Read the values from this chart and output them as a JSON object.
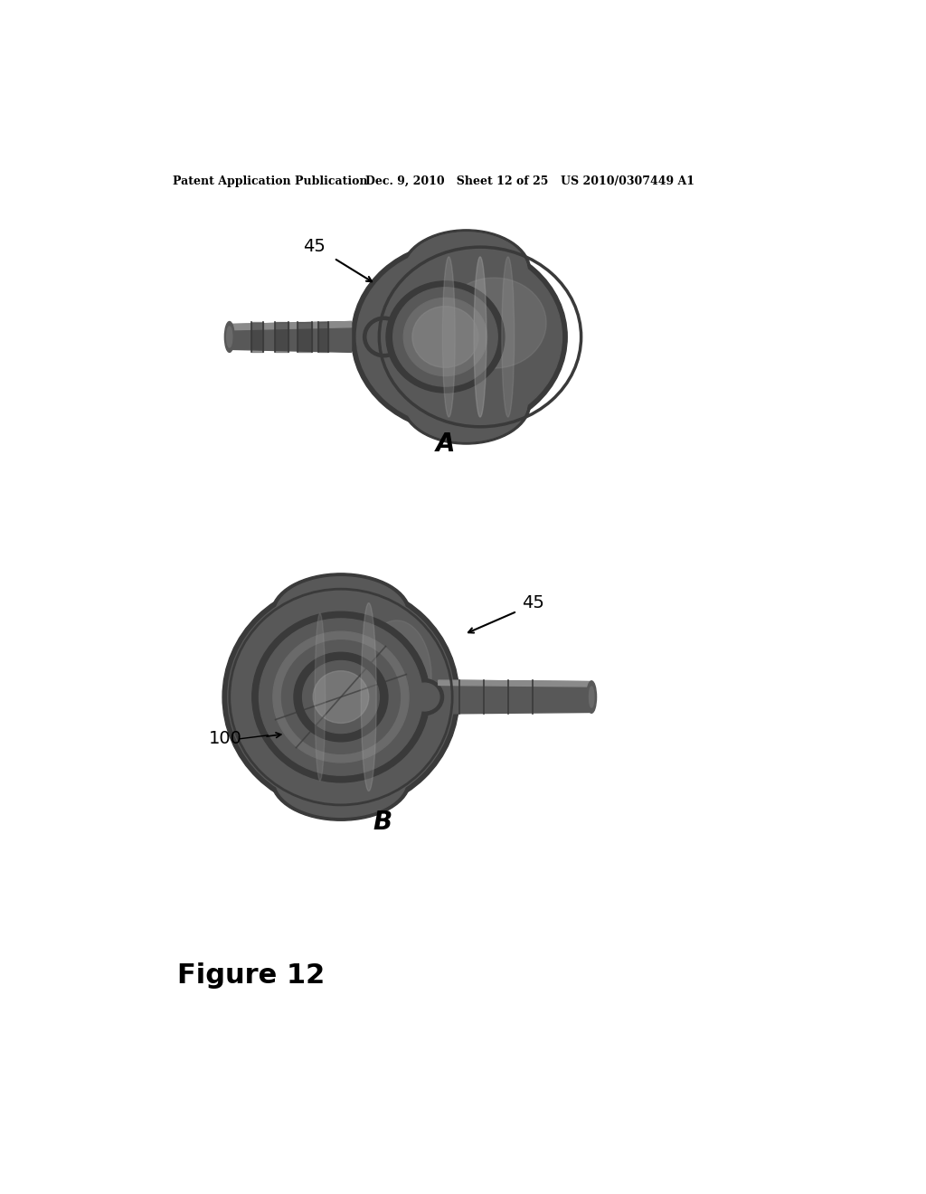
{
  "background_color": "#ffffff",
  "header_left": "Patent Application Publication",
  "header_mid": "Dec. 9, 2010   Sheet 12 of 25",
  "header_right": "US 2010/0307449 A1",
  "figure_label": "Figure 12",
  "label_A": "A",
  "label_B": "B",
  "fig_width": 10.24,
  "fig_height": 13.2,
  "dpi": 100,
  "gray_base": "#6a6a6a",
  "gray_dark": "#3a3a3a",
  "gray_mid": "#585858",
  "gray_light": "#8a8a8a",
  "gray_lighter": "#aaaaaa",
  "gray_highlight": "#c0c0c0"
}
